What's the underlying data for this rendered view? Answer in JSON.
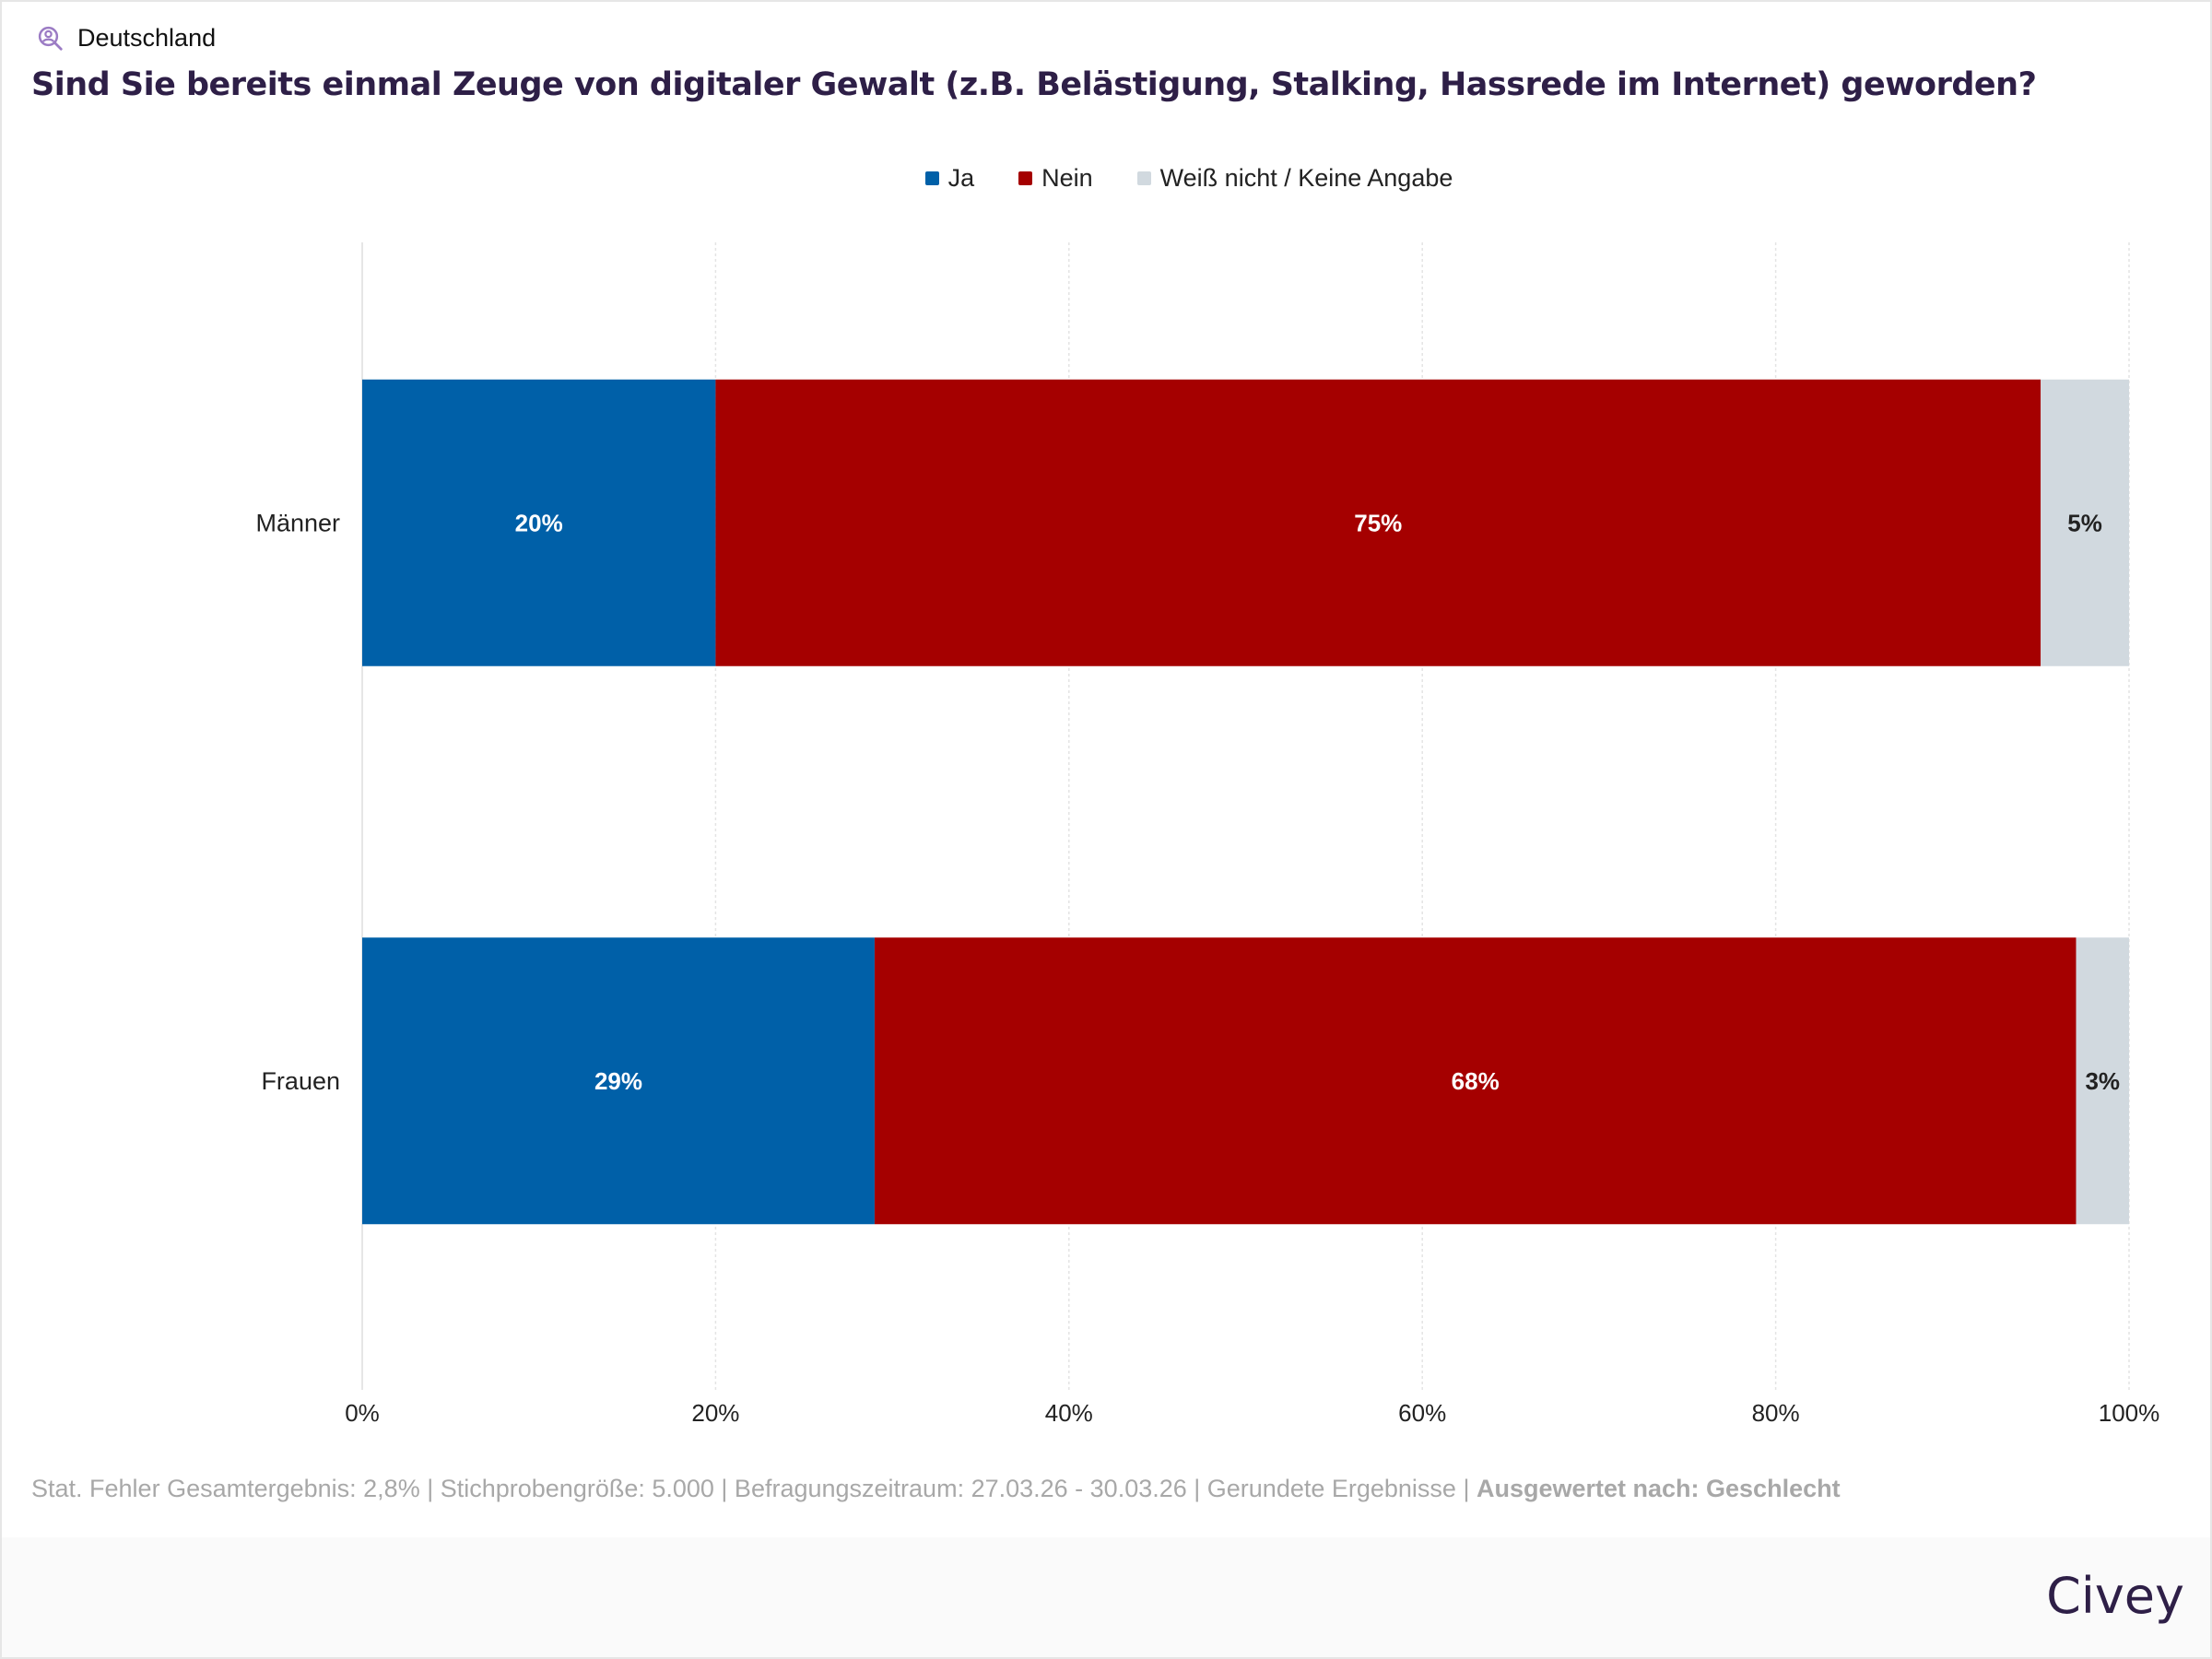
{
  "header": {
    "region": "Deutschland",
    "region_icon": "person-search-icon"
  },
  "chart_data": {
    "type": "bar",
    "orientation": "horizontal",
    "stacked": true,
    "title": "Sind Sie bereits einmal Zeuge von digitaler Gewalt (z.B. Belästigung, Stalking, Hassrede im Internet) geworden?",
    "categories": [
      "Männer",
      "Frauen"
    ],
    "series": [
      {
        "name": "Ja",
        "color": "#0060a8",
        "values": [
          20,
          29
        ]
      },
      {
        "name": "Nein",
        "color": "#a50000",
        "values": [
          75,
          68
        ]
      },
      {
        "name": "Weiß nicht / Keine Angabe",
        "color": "#d1d9df",
        "values": [
          5,
          3
        ]
      }
    ],
    "xlim": [
      0,
      100
    ],
    "xticks": [
      "0%",
      "20%",
      "40%",
      "60%",
      "80%",
      "100%"
    ],
    "grid": true,
    "legend": "top-center"
  },
  "footer": {
    "note": "Stat. Fehler Gesamtergebnis: 2,8% | Stichprobengröße: 5.000 | Befragungszeitraum: 27.03.26 - 30.03.26 | Gerundete Ergebnisse | ",
    "note_bold": "Ausgewertet nach: Geschlecht",
    "logo": "Civey"
  }
}
